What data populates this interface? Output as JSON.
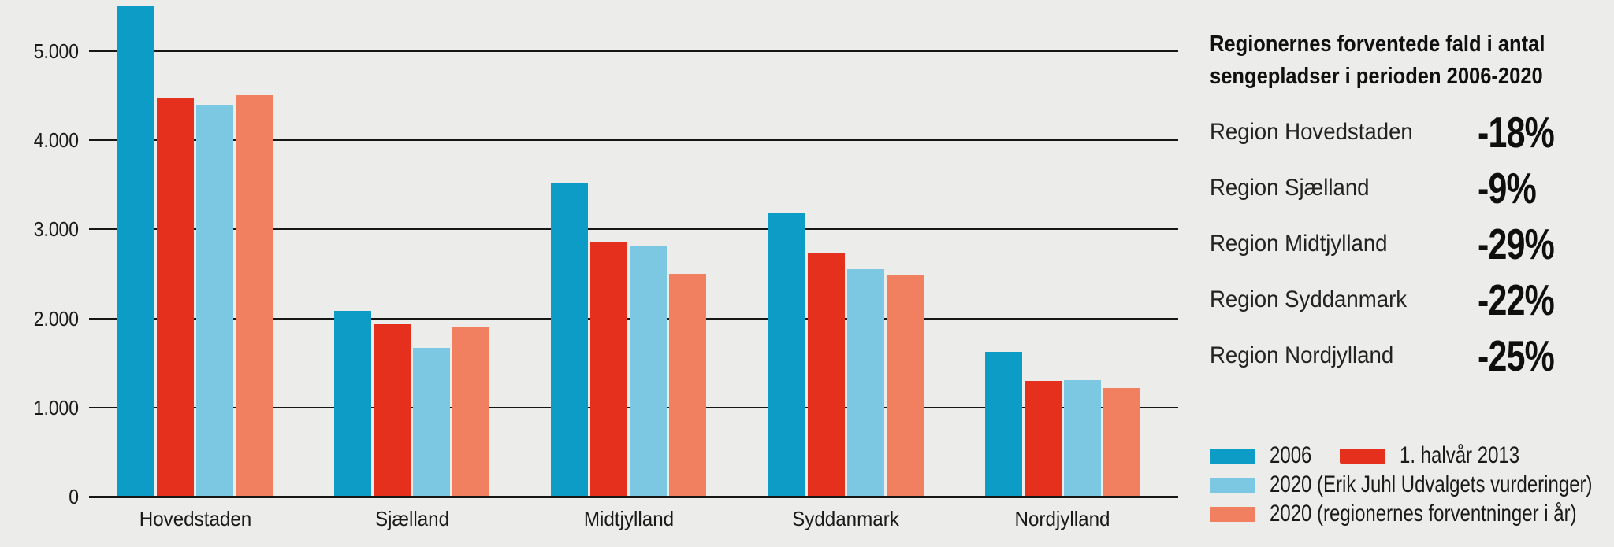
{
  "canvas": {
    "background": "#ECECEB",
    "line_color": "#161616",
    "text_color": "#1A1A1A"
  },
  "chart_data": {
    "type": "bar",
    "title": "Regionernes forventede fald i antal sengepladser i perioden 2006-2020",
    "categories": [
      "Hovedstaden",
      "Sjælland",
      "Midtjylland",
      "Syddanmark",
      "Nordjylland"
    ],
    "series": [
      {
        "name": "2006",
        "color": "#0C9CC6",
        "values": [
          5500,
          2080,
          3510,
          3180,
          1620
        ]
      },
      {
        "name": "1. halvår 2013",
        "color": "#E4301D",
        "values": [
          4460,
          1930,
          2850,
          2730,
          1290
        ]
      },
      {
        "name": "2020 (Erik Juhl Udvalgets vurderinger)",
        "color": "#7CC8E2",
        "values": [
          4390,
          1660,
          2810,
          2540,
          1300
        ]
      },
      {
        "name": "2020 (regionernes forventninger i år)",
        "color": "#F0805F",
        "values": [
          4500,
          1890,
          2490,
          2480,
          1210
        ]
      }
    ],
    "xlabel": "",
    "ylabel": "",
    "ylim": [
      0,
      5575
    ],
    "yticks": [
      {
        "value": 0,
        "label": "0"
      },
      {
        "value": 1000,
        "label": "1.000"
      },
      {
        "value": 2000,
        "label": "2.000"
      },
      {
        "value": 3000,
        "label": "3.000"
      },
      {
        "value": 4000,
        "label": "4.000"
      },
      {
        "value": 5000,
        "label": "5.000"
      }
    ],
    "grid": true,
    "legend_position": "bottom-right",
    "legend_rows": [
      [
        0,
        1
      ],
      [
        2
      ],
      [
        3
      ]
    ]
  },
  "panel": {
    "title_lines": [
      "Regionernes forventede fald i antal",
      "sengepladser i perioden 2006-2020"
    ],
    "rows": [
      {
        "label": "Region Hovedstaden",
        "value": "-18%"
      },
      {
        "label": "Region Sjælland",
        "value": "-9%"
      },
      {
        "label": "Region Midtjylland",
        "value": "-29%"
      },
      {
        "label": "Region Syddanmark",
        "value": "-22%"
      },
      {
        "label": "Region Nordjylland",
        "value": "-25%"
      }
    ]
  }
}
